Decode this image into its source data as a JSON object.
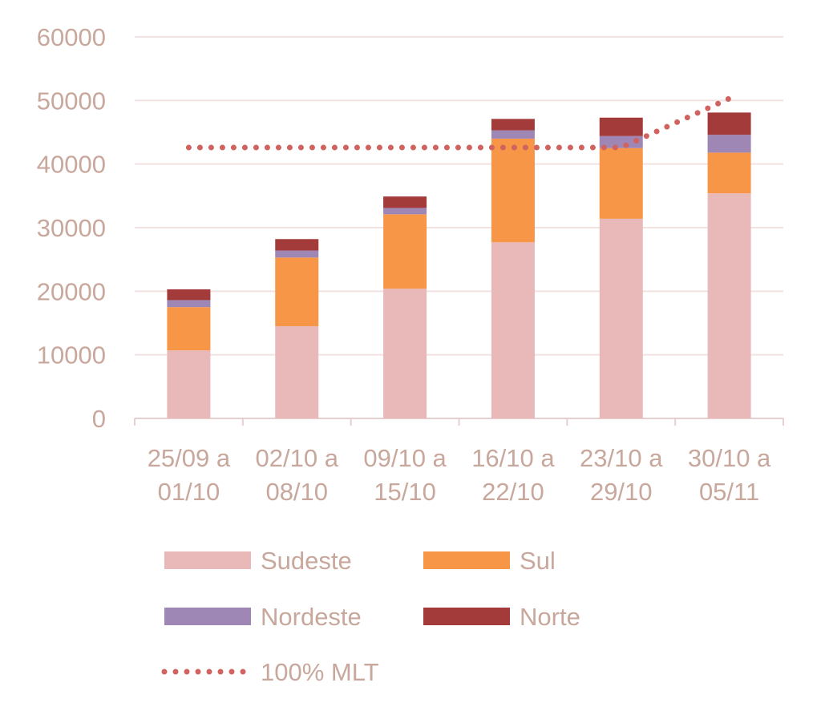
{
  "chart_data": {
    "type": "bar",
    "stacked": true,
    "title": "",
    "xlabel": "",
    "ylabel": "",
    "ylim": [
      0,
      60000
    ],
    "yticks": [
      "0",
      "10000",
      "20000",
      "30000",
      "40000",
      "50000",
      "60000"
    ],
    "grid": true,
    "legend_position": "bottom",
    "categories": [
      [
        "25/09 a",
        "01/10"
      ],
      [
        "02/10 a",
        "08/10"
      ],
      [
        "09/10 a",
        "15/10"
      ],
      [
        "16/10 a",
        "22/10"
      ],
      [
        "23/10 a",
        "29/10"
      ],
      [
        "30/10 a",
        "05/11"
      ]
    ],
    "series": [
      {
        "name": "Sudeste",
        "color": "#e8b9b8",
        "values": [
          10700,
          14500,
          20400,
          27700,
          31400,
          35400
        ]
      },
      {
        "name": "Sul",
        "color": "#f79646",
        "values": [
          6800,
          10800,
          11700,
          16300,
          11100,
          6400
        ]
      },
      {
        "name": "Nordeste",
        "color": "#9e86b5",
        "values": [
          1100,
          1100,
          1000,
          1300,
          1900,
          2800
        ]
      },
      {
        "name": "Norte",
        "color": "#a33b3b",
        "values": [
          1700,
          1800,
          1800,
          1800,
          2900,
          3500
        ]
      }
    ],
    "line_series": {
      "name": "100% MLT",
      "color": "#d0635f",
      "style": "dotted",
      "values": [
        42600,
        42600,
        42600,
        42600,
        42600,
        50300
      ]
    }
  }
}
